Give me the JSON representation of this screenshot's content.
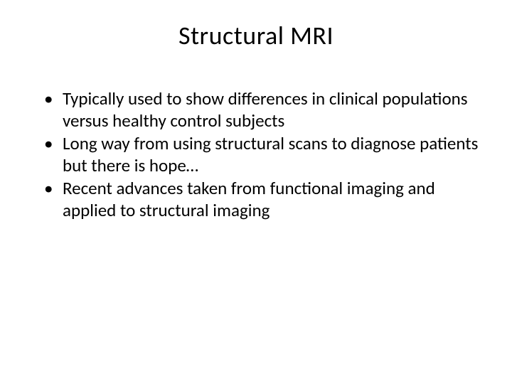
{
  "slide": {
    "title": "Structural MRI",
    "bullets": [
      "Typically used to show differences in clinical populations versus healthy control subjects",
      "Long way from using structural scans to diagnose patients but there is hope…",
      "Recent advances taken from functional imaging and applied to structural imaging"
    ],
    "styling": {
      "background_color": "#ffffff",
      "text_color": "#000000",
      "title_fontsize": 36,
      "title_fontweight": 400,
      "body_fontsize": 25,
      "body_lineheight": 1.22,
      "font_family": "Calibri",
      "bullet_char": "•",
      "slide_width": 720,
      "slide_height": 540,
      "title_align": "center"
    }
  }
}
